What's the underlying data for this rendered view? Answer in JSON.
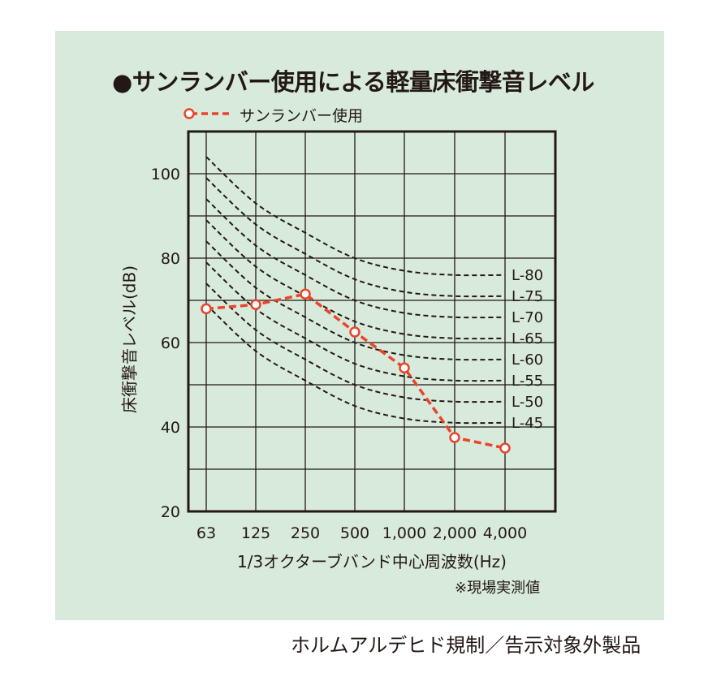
{
  "colors": {
    "panel_bg": "#d8eadb",
    "series": "#e8452b",
    "reference_curves": "#231815"
  },
  "footer": "ホルムアルデヒド規制／告示対象外製品",
  "note": "※現場実測値",
  "chart_data": {
    "type": "line",
    "title": "●サンランバー使用による軽量床衝撃音レベル",
    "xlabel": "1/3オクターブバンド中心周波数(Hz)",
    "ylabel": "床衝撃音レベル(dB)",
    "categories": [
      "63",
      "125",
      "250",
      "500",
      "1,000",
      "2,000",
      "4,000"
    ],
    "ylim": [
      20,
      110
    ],
    "yticks": [
      "20",
      "40",
      "60",
      "80",
      "100"
    ],
    "grid": true,
    "legend": "top-left",
    "series": [
      {
        "name": "サンランバー使用",
        "values": [
          68,
          69,
          71.5,
          62.5,
          54,
          37.5,
          35
        ]
      }
    ],
    "reference_curves": [
      {
        "name": "L-80",
        "values": [
          104,
          93,
          86,
          80,
          77,
          76,
          76
        ]
      },
      {
        "name": "L-75",
        "values": [
          99,
          88,
          81,
          75,
          72,
          71,
          71
        ]
      },
      {
        "name": "L-70",
        "values": [
          94,
          83,
          76,
          70,
          67,
          66,
          66
        ]
      },
      {
        "name": "L-65",
        "values": [
          89,
          78,
          71,
          65,
          62,
          61,
          61
        ]
      },
      {
        "name": "L-60",
        "values": [
          84,
          73,
          66,
          60,
          57,
          56,
          56
        ]
      },
      {
        "name": "L-55",
        "values": [
          79,
          68,
          61,
          55,
          52,
          51,
          51
        ]
      },
      {
        "name": "L-50",
        "values": [
          74,
          63,
          56,
          50,
          47,
          46,
          46
        ]
      },
      {
        "name": "L-45",
        "values": [
          69,
          58,
          51,
          45,
          42,
          41,
          41
        ]
      }
    ]
  }
}
